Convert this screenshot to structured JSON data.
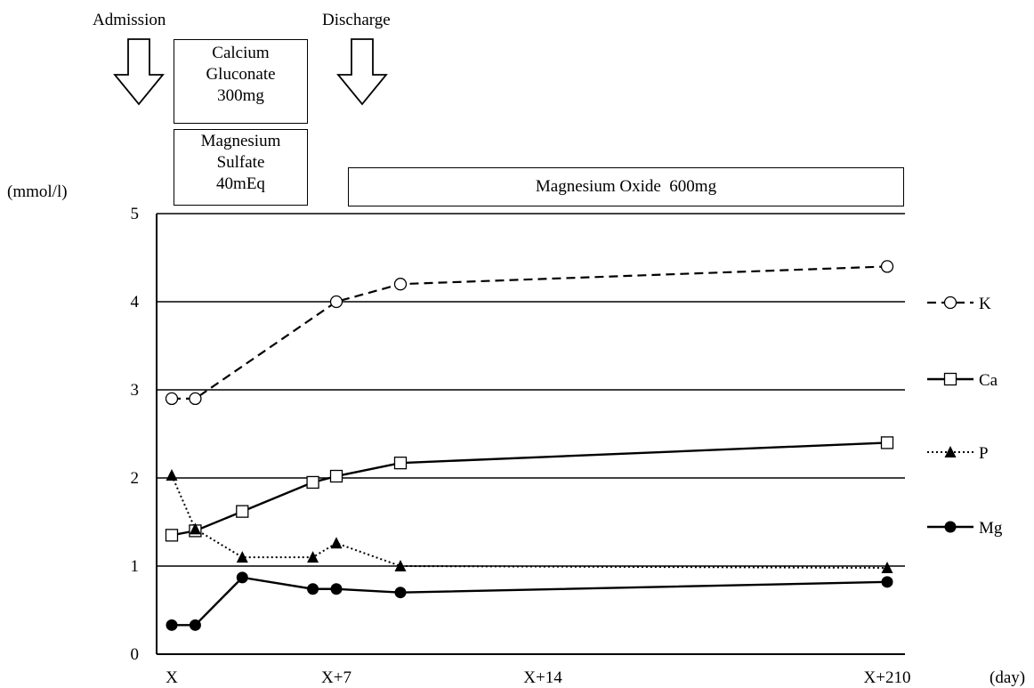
{
  "annotations": {
    "admission": "Admission",
    "discharge": "Discharge",
    "calcium_box": [
      "Calcium",
      "Gluconate",
      "300mg"
    ],
    "magnesium_sulfate_box": [
      "Magnesium",
      "Sulfate",
      "40mEq"
    ],
    "magnesium_oxide_box": "Magnesium Oxide  600mg"
  },
  "chart_data": {
    "type": "line",
    "ylabel": "(mmol/l)",
    "xlabel": "(day)",
    "ylim": [
      0,
      5
    ],
    "y_ticks": [
      "0",
      "1",
      "2",
      "3",
      "4",
      "5"
    ],
    "x_tick_labels": [
      {
        "label": "X",
        "day": 0
      },
      {
        "label": "X+7",
        "day": 7
      },
      {
        "label": "X+14",
        "day": 14
      },
      {
        "label": "X+210",
        "day": 210
      }
    ],
    "grid": "horizontal",
    "legend_placement": "right",
    "series": [
      {
        "name": "K",
        "style": "dashed",
        "marker": "open-circle",
        "x": [
          0,
          1,
          7,
          9,
          210
        ],
        "values": [
          2.9,
          2.9,
          4.0,
          4.2,
          4.4
        ]
      },
      {
        "name": "Ca",
        "style": "solid",
        "marker": "open-square",
        "x": [
          0,
          1,
          3,
          6,
          7,
          9,
          210
        ],
        "values": [
          1.35,
          1.4,
          1.62,
          1.95,
          2.02,
          2.17,
          2.4
        ]
      },
      {
        "name": "P",
        "style": "dotted",
        "marker": "filled-triangle",
        "x": [
          0,
          1,
          3,
          6,
          7,
          9,
          210
        ],
        "values": [
          2.03,
          1.42,
          1.1,
          1.1,
          1.26,
          1.0,
          0.98
        ]
      },
      {
        "name": "Mg",
        "style": "solid",
        "marker": "filled-circle",
        "x": [
          0,
          1,
          3,
          6,
          7,
          9,
          210
        ],
        "values": [
          0.33,
          0.33,
          0.87,
          0.74,
          0.74,
          0.7,
          0.82
        ]
      }
    ]
  }
}
